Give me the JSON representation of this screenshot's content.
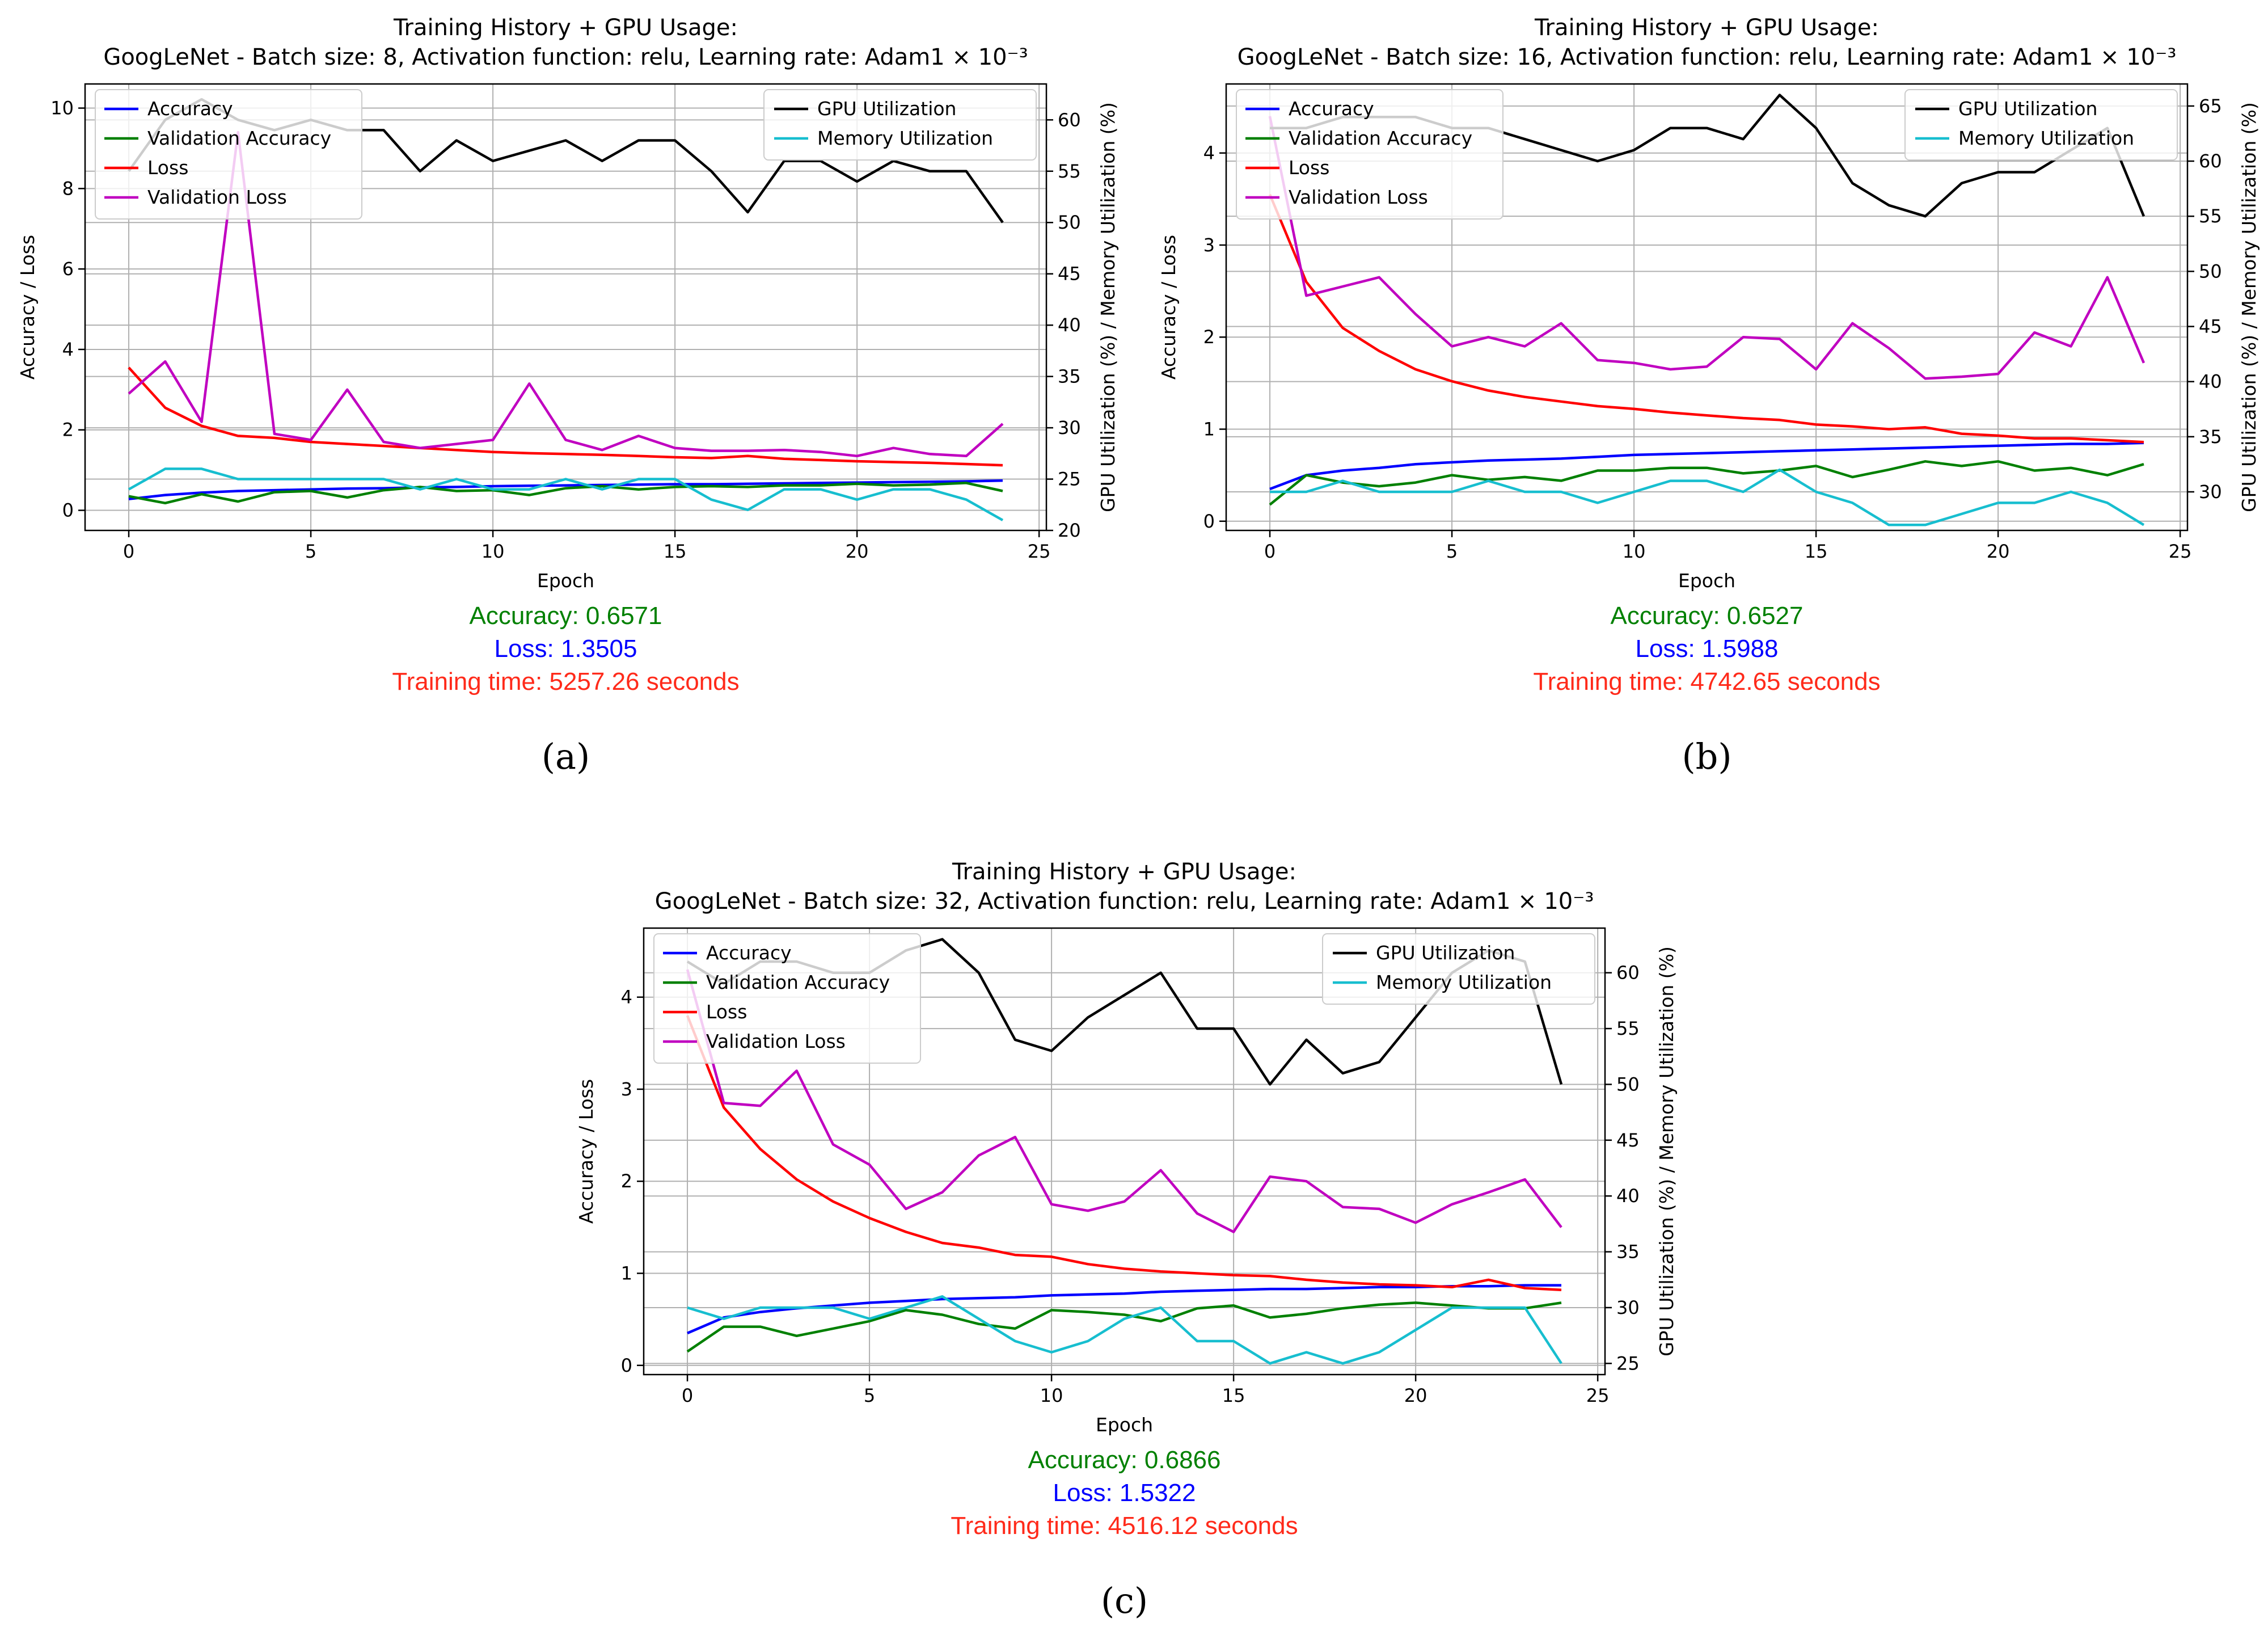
{
  "chart_data": [
    {
      "id": "a",
      "type": "line",
      "title": "Training History + GPU Usage:",
      "subtitle": "GoogLeNet - Batch size: 8, Activation function: relu, Learning rate: Adam1 × 10⁻³",
      "xlabel": "Epoch",
      "ylabel": "Accuracy / Loss",
      "y2label": "GPU Utilization (%) / Memory Utilization (%)",
      "xlim": [
        -1.2,
        25.2
      ],
      "ylim": [
        -0.5,
        10.6
      ],
      "y2lim": [
        20,
        63.5
      ],
      "xticks": [
        0,
        5,
        10,
        15,
        20,
        25
      ],
      "yticks": [
        0,
        2,
        4,
        6,
        8,
        10
      ],
      "y2ticks": [
        20,
        25,
        30,
        35,
        40,
        45,
        50,
        55,
        60
      ],
      "grid": true,
      "legend_left": "top-left",
      "legend_right": "top-right",
      "x": [
        0,
        1,
        2,
        3,
        4,
        5,
        6,
        7,
        8,
        9,
        10,
        11,
        12,
        13,
        14,
        15,
        16,
        17,
        18,
        19,
        20,
        21,
        22,
        23,
        24
      ],
      "series": [
        {
          "name": "Accuracy",
          "axis": "left",
          "color": "#0000ff",
          "values": [
            0.28,
            0.38,
            0.44,
            0.48,
            0.5,
            0.52,
            0.54,
            0.55,
            0.57,
            0.58,
            0.6,
            0.61,
            0.62,
            0.63,
            0.64,
            0.65,
            0.65,
            0.66,
            0.67,
            0.68,
            0.69,
            0.7,
            0.71,
            0.72,
            0.74
          ]
        },
        {
          "name": "Validation Accuracy",
          "axis": "left",
          "color": "#008000",
          "values": [
            0.35,
            0.18,
            0.4,
            0.22,
            0.45,
            0.48,
            0.32,
            0.5,
            0.58,
            0.48,
            0.5,
            0.38,
            0.55,
            0.6,
            0.52,
            0.58,
            0.6,
            0.58,
            0.62,
            0.62,
            0.66,
            0.62,
            0.64,
            0.68,
            0.48
          ]
        },
        {
          "name": "Loss",
          "axis": "left",
          "color": "#ff0000",
          "values": [
            3.55,
            2.55,
            2.1,
            1.85,
            1.8,
            1.7,
            1.65,
            1.6,
            1.55,
            1.5,
            1.45,
            1.42,
            1.4,
            1.38,
            1.35,
            1.32,
            1.3,
            1.35,
            1.28,
            1.25,
            1.22,
            1.2,
            1.18,
            1.15,
            1.12
          ]
        },
        {
          "name": "Validation Loss",
          "axis": "left",
          "color": "#c000c0",
          "values": [
            2.9,
            3.7,
            2.2,
            9.4,
            1.9,
            1.75,
            3.0,
            1.7,
            1.55,
            1.65,
            1.75,
            3.15,
            1.75,
            1.5,
            1.85,
            1.55,
            1.48,
            1.48,
            1.5,
            1.45,
            1.35,
            1.55,
            1.4,
            1.35,
            2.15
          ]
        },
        {
          "name": "GPU Utilization",
          "axis": "right",
          "color": "#000000",
          "values": [
            55,
            60,
            62,
            60,
            59,
            60,
            59,
            59,
            55,
            58,
            56,
            57,
            58,
            56,
            58,
            58,
            55,
            51,
            56,
            56,
            54,
            56,
            55,
            55,
            50
          ]
        },
        {
          "name": "Memory Utilization",
          "axis": "right",
          "color": "#17becf",
          "values": [
            24,
            26,
            26,
            25,
            25,
            25,
            25,
            25,
            24,
            25,
            24,
            24,
            25,
            24,
            25,
            25,
            23,
            22,
            24,
            24,
            23,
            24,
            24,
            23,
            21
          ]
        }
      ],
      "stats": {
        "accuracy": "Accuracy: 0.6571",
        "loss": "Loss: 1.3505",
        "time": "Training time: 5257.26 seconds"
      },
      "caption": "(a)"
    },
    {
      "id": "b",
      "type": "line",
      "title": "Training History + GPU Usage:",
      "subtitle": "GoogLeNet - Batch size: 16, Activation function: relu, Learning rate: Adam1 × 10⁻³",
      "xlabel": "Epoch",
      "ylabel": "Accuracy / Loss",
      "y2label": "GPU Utilization (%) / Memory Utilization (%)",
      "xlim": [
        -1.2,
        25.2
      ],
      "ylim": [
        -0.1,
        4.75
      ],
      "y2lim": [
        26.5,
        67
      ],
      "xticks": [
        0,
        5,
        10,
        15,
        20,
        25
      ],
      "yticks": [
        0,
        1,
        2,
        3,
        4
      ],
      "y2ticks": [
        30,
        35,
        40,
        45,
        50,
        55,
        60,
        65
      ],
      "grid": true,
      "legend_left": "top-left",
      "legend_right": "top-right",
      "x": [
        0,
        1,
        2,
        3,
        4,
        5,
        6,
        7,
        8,
        9,
        10,
        11,
        12,
        13,
        14,
        15,
        16,
        17,
        18,
        19,
        20,
        21,
        22,
        23,
        24
      ],
      "series": [
        {
          "name": "Accuracy",
          "axis": "left",
          "color": "#0000ff",
          "values": [
            0.35,
            0.5,
            0.55,
            0.58,
            0.62,
            0.64,
            0.66,
            0.67,
            0.68,
            0.7,
            0.72,
            0.73,
            0.74,
            0.75,
            0.76,
            0.77,
            0.78,
            0.79,
            0.8,
            0.81,
            0.82,
            0.83,
            0.84,
            0.84,
            0.85
          ]
        },
        {
          "name": "Validation Accuracy",
          "axis": "left",
          "color": "#008000",
          "values": [
            0.18,
            0.5,
            0.42,
            0.38,
            0.42,
            0.5,
            0.45,
            0.48,
            0.44,
            0.55,
            0.55,
            0.58,
            0.58,
            0.52,
            0.55,
            0.6,
            0.48,
            0.56,
            0.65,
            0.6,
            0.65,
            0.55,
            0.58,
            0.5,
            0.62
          ]
        },
        {
          "name": "Loss",
          "axis": "left",
          "color": "#ff0000",
          "values": [
            3.55,
            2.6,
            2.1,
            1.85,
            1.65,
            1.52,
            1.42,
            1.35,
            1.3,
            1.25,
            1.22,
            1.18,
            1.15,
            1.12,
            1.1,
            1.05,
            1.03,
            1.0,
            1.02,
            0.95,
            0.93,
            0.9,
            0.9,
            0.88,
            0.86
          ]
        },
        {
          "name": "Validation Loss",
          "axis": "left",
          "color": "#c000c0",
          "values": [
            4.4,
            2.45,
            2.55,
            2.65,
            2.25,
            1.9,
            2.0,
            1.9,
            2.15,
            1.75,
            1.72,
            1.65,
            1.68,
            2.0,
            1.98,
            1.65,
            2.15,
            1.88,
            1.55,
            1.57,
            1.6,
            2.05,
            1.9,
            2.65,
            1.72
          ]
        },
        {
          "name": "GPU Utilization",
          "axis": "right",
          "color": "#000000",
          "values": [
            63,
            63,
            64,
            64,
            64,
            63,
            63,
            62,
            61,
            60,
            61,
            63,
            63,
            62,
            66,
            63,
            58,
            56,
            55,
            58,
            59,
            59,
            61,
            63,
            55
          ]
        },
        {
          "name": "Memory Utilization",
          "axis": "right",
          "color": "#17becf",
          "values": [
            30,
            30,
            31,
            30,
            30,
            30,
            31,
            30,
            30,
            29,
            30,
            31,
            31,
            30,
            32,
            30,
            29,
            27,
            27,
            28,
            29,
            29,
            30,
            29,
            27
          ]
        }
      ],
      "stats": {
        "accuracy": "Accuracy: 0.6527",
        "loss": "Loss: 1.5988",
        "time": "Training time: 4742.65 seconds"
      },
      "caption": "(b)"
    },
    {
      "id": "c",
      "type": "line",
      "title": "Training History + GPU Usage:",
      "subtitle": "GoogLeNet - Batch size: 32, Activation function: relu, Learning rate: Adam1 × 10⁻³",
      "xlabel": "Epoch",
      "ylabel": "Accuracy / Loss",
      "y2label": "GPU Utilization (%) / Memory Utilization (%)",
      "xlim": [
        -1.2,
        25.2
      ],
      "ylim": [
        -0.1,
        4.75
      ],
      "y2lim": [
        24,
        64
      ],
      "xticks": [
        0,
        5,
        10,
        15,
        20,
        25
      ],
      "yticks": [
        0,
        1,
        2,
        3,
        4
      ],
      "y2ticks": [
        25,
        30,
        35,
        40,
        45,
        50,
        55,
        60
      ],
      "grid": true,
      "legend_left": "top-left",
      "legend_right": "top-right",
      "x": [
        0,
        1,
        2,
        3,
        4,
        5,
        6,
        7,
        8,
        9,
        10,
        11,
        12,
        13,
        14,
        15,
        16,
        17,
        18,
        19,
        20,
        21,
        22,
        23,
        24
      ],
      "series": [
        {
          "name": "Accuracy",
          "axis": "left",
          "color": "#0000ff",
          "values": [
            0.35,
            0.52,
            0.58,
            0.62,
            0.65,
            0.68,
            0.7,
            0.72,
            0.73,
            0.74,
            0.76,
            0.77,
            0.78,
            0.8,
            0.81,
            0.82,
            0.83,
            0.83,
            0.84,
            0.85,
            0.85,
            0.86,
            0.86,
            0.87,
            0.87
          ]
        },
        {
          "name": "Validation Accuracy",
          "axis": "left",
          "color": "#008000",
          "values": [
            0.15,
            0.42,
            0.42,
            0.32,
            0.4,
            0.48,
            0.6,
            0.55,
            0.45,
            0.4,
            0.6,
            0.58,
            0.55,
            0.48,
            0.62,
            0.65,
            0.52,
            0.56,
            0.62,
            0.66,
            0.68,
            0.65,
            0.62,
            0.62,
            0.68
          ]
        },
        {
          "name": "Loss",
          "axis": "left",
          "color": "#ff0000",
          "values": [
            3.8,
            2.8,
            2.35,
            2.02,
            1.78,
            1.6,
            1.45,
            1.33,
            1.28,
            1.2,
            1.18,
            1.1,
            1.05,
            1.02,
            1.0,
            0.98,
            0.97,
            0.93,
            0.9,
            0.88,
            0.87,
            0.85,
            0.93,
            0.84,
            0.82
          ]
        },
        {
          "name": "Validation Loss",
          "axis": "left",
          "color": "#c000c0",
          "values": [
            4.3,
            2.85,
            2.82,
            3.2,
            2.4,
            2.18,
            1.7,
            1.88,
            2.28,
            2.48,
            1.75,
            1.68,
            1.78,
            2.12,
            1.65,
            1.45,
            2.05,
            2.0,
            1.72,
            1.7,
            1.55,
            1.75,
            1.88,
            2.02,
            1.5
          ]
        },
        {
          "name": "GPU Utilization",
          "axis": "right",
          "color": "#000000",
          "values": [
            61,
            59,
            61,
            61,
            60,
            60,
            62,
            63,
            60,
            54,
            53,
            56,
            58,
            60,
            55,
            55,
            50,
            54,
            51,
            52,
            56,
            60,
            62,
            61,
            50
          ]
        },
        {
          "name": "Memory Utilization",
          "axis": "right",
          "color": "#17becf",
          "values": [
            30,
            29,
            30,
            30,
            30,
            29,
            30,
            31,
            29,
            27,
            26,
            27,
            29,
            30,
            27,
            27,
            25,
            26,
            25,
            26,
            28,
            30,
            30,
            30,
            25
          ]
        }
      ],
      "stats": {
        "accuracy": "Accuracy: 0.6866",
        "loss": "Loss: 1.5322",
        "time": "Training time: 4516.12 seconds"
      },
      "caption": "(c)"
    }
  ]
}
